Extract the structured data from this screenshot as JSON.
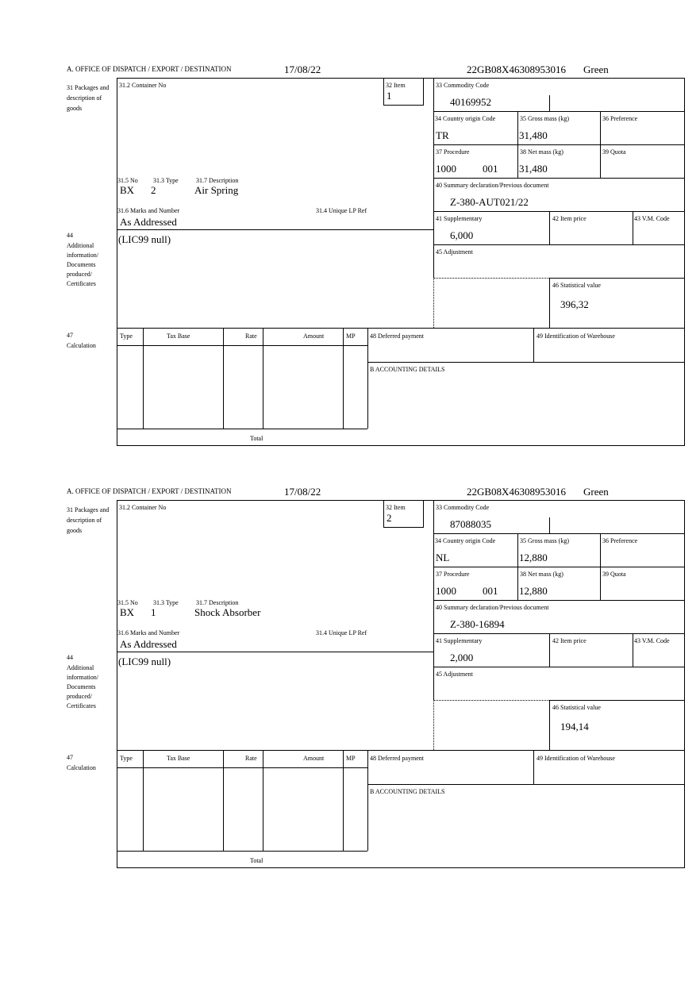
{
  "labels": {
    "office": "A. OFFICE OF DISPATCH / EXPORT / DESTINATION",
    "packages": "31 Packages and description of goods",
    "container_no": "31.2 Container No",
    "item": "32 Item",
    "no": "31.5 No",
    "type": "31.3 Type",
    "description": "31.7 Description",
    "marks": "31.6 Marks and Number",
    "unique_lp": "31.4 Unique LP Ref",
    "commodity": "33 Commodity Code",
    "country": "34 Country origin Code",
    "gross": "35 Gross mass (kg)",
    "preference": "36 Preference",
    "procedure": "37 Procedure",
    "net": "38 Net mass (kg)",
    "quota": "39 Quota",
    "summary": "40 Summary declaration/Previous document",
    "supplementary": "41 Supplementary",
    "item_price": "42 Item price",
    "vm_code": "43 V.M. Code",
    "adjustment": "45 Adjustment",
    "statistical": "46 Statistical value",
    "additional_num": "44",
    "additional": "Additional information/ Documents produced/ Certificates",
    "calc_num": "47",
    "calc": "Calculation",
    "col_type": "Type",
    "col_tax_base": "Tax Base",
    "col_rate": "Rate",
    "col_amount": "Amount",
    "col_mp": "MP",
    "total": "Total",
    "deferred": "48 Deferred payment",
    "warehouse": "49 Identification of Warehouse",
    "accounting": "B ACCOUNTING DETAILS"
  },
  "forms": [
    {
      "date": "17/08/22",
      "reference": "22GB08X46308953016",
      "route": "Green",
      "item": "1",
      "package_kind": "BX",
      "package_count": "2",
      "description": "Air Spring",
      "marks": "As Addressed",
      "commodity_code": "40169952",
      "country": "TR",
      "gross_mass": "31,480",
      "procedure": "1000",
      "procedure_extra": "001",
      "net_mass": "31,480",
      "summary_doc": "Z-380-AUT021/22",
      "supplementary": "6,000",
      "additional_info": "(LIC99 null)",
      "statistical_value": "396,32"
    },
    {
      "date": "17/08/22",
      "reference": "22GB08X46308953016",
      "route": "Green",
      "item": "2",
      "package_kind": "BX",
      "package_count": "1",
      "description": "Shock Absorber",
      "marks": "As Addressed",
      "commodity_code": "87088035",
      "country": "NL",
      "gross_mass": "12,880",
      "procedure": "1000",
      "procedure_extra": "001",
      "net_mass": "12,880",
      "summary_doc": "Z-380-16894",
      "supplementary": "2,000",
      "additional_info": "(LIC99 null)",
      "statistical_value": "194,14"
    }
  ]
}
